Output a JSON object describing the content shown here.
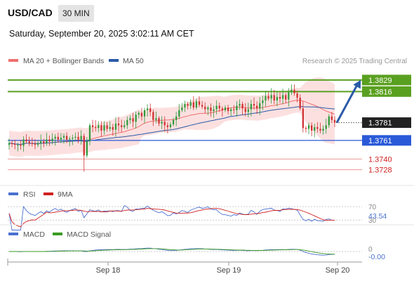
{
  "header": {
    "symbol": "USD/CAD",
    "timeframe": "30 MIN",
    "datetime": "Saturday, September 20, 2025 3:02:11 AM CET"
  },
  "legend": {
    "ma20": "MA 20 + Bollinger Bands",
    "ma50": "MA 50",
    "ma20_color": "#f07070",
    "ma50_color": "#2a5aa8"
  },
  "credit": "Research © 2025 Trading Central",
  "colors": {
    "up": "#2e9a3a",
    "down": "#d03030",
    "resistance": "#5aa020",
    "support": "#2a5ad8",
    "support_minor": "#e05050",
    "band_fill": "#fbd5d5",
    "arrow": "#2a5aa8",
    "rsi": "#4a70d0",
    "rsi_ma": "#d02020",
    "macd": "#4a70d0",
    "macd_signal": "#3a9a20"
  },
  "chart_data": [
    {
      "type": "candlestick",
      "ylim": [
        1.3715,
        1.384
      ],
      "levels": [
        {
          "value": 1.3829,
          "label": "1.3829",
          "kind": "resistance"
        },
        {
          "value": 1.3816,
          "label": "1.3816",
          "kind": "resistance"
        },
        {
          "value": 1.3761,
          "label": "1.3761",
          "kind": "support"
        },
        {
          "value": 1.374,
          "label": "1.3740",
          "kind": "support_minor"
        },
        {
          "value": 1.3728,
          "label": "1.3728",
          "kind": "support_minor"
        }
      ],
      "last_price": {
        "value": 1.3781,
        "label": "1.3781"
      },
      "forecast": {
        "from": 1.3781,
        "to": 1.3829
      },
      "x_ticks": [
        "Sep 18",
        "Sep 19",
        "Sep 20"
      ],
      "closes": [
        1.3758,
        1.3757,
        1.3756,
        1.3756,
        1.3755,
        1.3762,
        1.376,
        1.3758,
        1.3757,
        1.3756,
        1.3758,
        1.376,
        1.3758,
        1.3762,
        1.376,
        1.3763,
        1.3765,
        1.3762,
        1.3764,
        1.3766,
        1.3762,
        1.3763,
        1.3764,
        1.3765,
        1.3762,
        1.3766,
        1.3744,
        1.376,
        1.3778,
        1.3776,
        1.3775,
        1.3778,
        1.3772,
        1.3778,
        1.3774,
        1.3776,
        1.3773,
        1.378,
        1.3778,
        1.3776,
        1.3778,
        1.3784,
        1.3786,
        1.3782,
        1.379,
        1.3792,
        1.3788,
        1.3795,
        1.3797,
        1.3793,
        1.3784,
        1.3786,
        1.378,
        1.3782,
        1.3778,
        1.3776,
        1.3779,
        1.3784,
        1.3788,
        1.3795,
        1.3798,
        1.3802,
        1.38,
        1.3804,
        1.3798,
        1.3805,
        1.3801,
        1.3799,
        1.3796,
        1.3798,
        1.3794,
        1.3796,
        1.38,
        1.3797,
        1.3795,
        1.3798,
        1.3794,
        1.3796,
        1.3795,
        1.38,
        1.3802,
        1.3797,
        1.3793,
        1.3796,
        1.3802,
        1.38,
        1.3797,
        1.3803,
        1.3806,
        1.3811,
        1.3808,
        1.3812,
        1.3806,
        1.381,
        1.3808,
        1.3812,
        1.3807,
        1.3815,
        1.3818,
        1.3814,
        1.3809,
        1.3797,
        1.3775,
        1.3774,
        1.3778,
        1.3772,
        1.3776,
        1.3774,
        1.3772,
        1.3774,
        1.3778,
        1.3788,
        1.3784,
        1.3781
      ]
    },
    {
      "type": "line",
      "title": "RSI",
      "series": [
        {
          "name": "RSI"
        },
        {
          "name": "9MA"
        }
      ],
      "levels": [
        70,
        30
      ],
      "value_label": "43.54"
    },
    {
      "type": "line",
      "title": "MACD",
      "series": [
        {
          "name": "MACD"
        },
        {
          "name": "MACD Signal"
        }
      ],
      "levels": [
        0
      ],
      "value_label": "-0.00"
    }
  ]
}
